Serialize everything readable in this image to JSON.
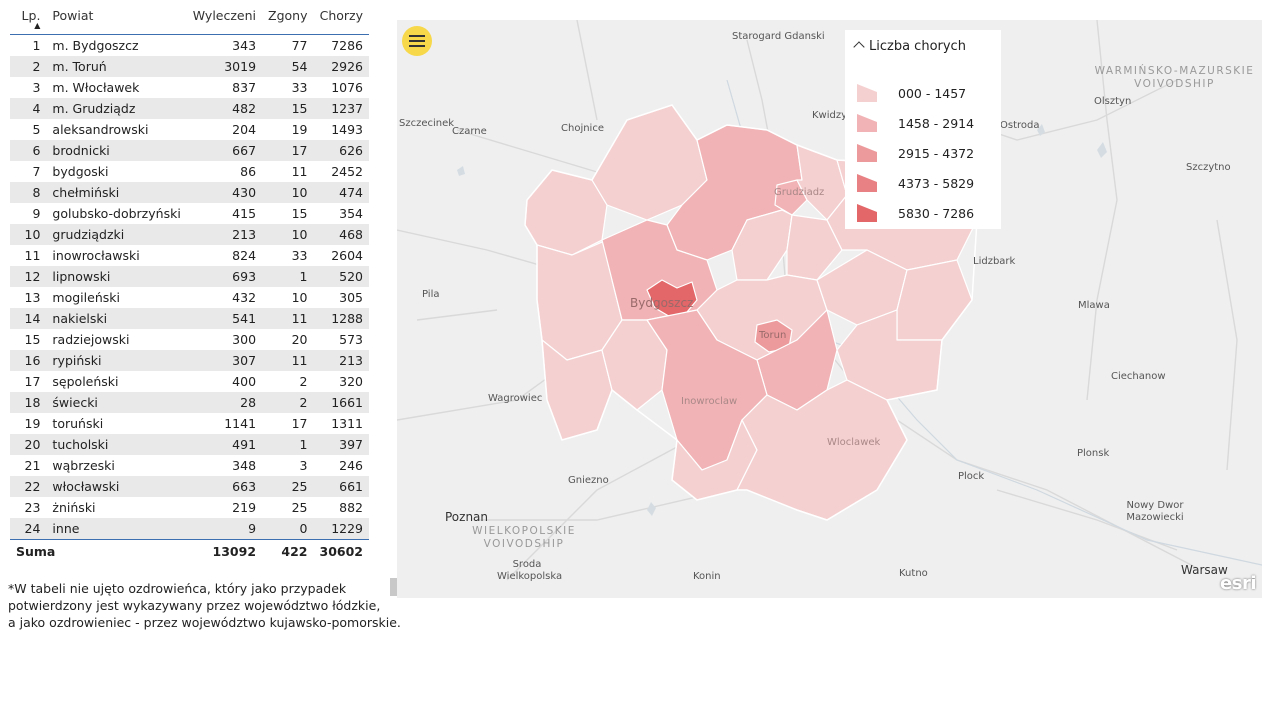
{
  "table": {
    "headers": {
      "lp": "Lp.",
      "name": "Powiat",
      "recovered": "Wyleczeni",
      "deaths": "Zgony",
      "sick": "Chorzy"
    },
    "rows": [
      {
        "lp": "1",
        "name": "m. Bydgoszcz",
        "recovered": "343",
        "deaths": "77",
        "sick": "7286"
      },
      {
        "lp": "2",
        "name": "m. Toruń",
        "recovered": "3019",
        "deaths": "54",
        "sick": "2926"
      },
      {
        "lp": "3",
        "name": "m. Włocławek",
        "recovered": "837",
        "deaths": "33",
        "sick": "1076"
      },
      {
        "lp": "4",
        "name": "m. Grudziądz",
        "recovered": "482",
        "deaths": "15",
        "sick": "1237"
      },
      {
        "lp": "5",
        "name": "aleksandrowski",
        "recovered": "204",
        "deaths": "19",
        "sick": "1493"
      },
      {
        "lp": "6",
        "name": "brodnicki",
        "recovered": "667",
        "deaths": "17",
        "sick": "626"
      },
      {
        "lp": "7",
        "name": "bydgoski",
        "recovered": "86",
        "deaths": "11",
        "sick": "2452"
      },
      {
        "lp": "8",
        "name": "chełmiński",
        "recovered": "430",
        "deaths": "10",
        "sick": "474"
      },
      {
        "lp": "9",
        "name": "golubsko-dobrzyński",
        "recovered": "415",
        "deaths": "15",
        "sick": "354"
      },
      {
        "lp": "10",
        "name": "grudziądzki",
        "recovered": "213",
        "deaths": "10",
        "sick": "468"
      },
      {
        "lp": "11",
        "name": "inowrocławski",
        "recovered": "824",
        "deaths": "33",
        "sick": "2604"
      },
      {
        "lp": "12",
        "name": "lipnowski",
        "recovered": "693",
        "deaths": "1",
        "sick": "520"
      },
      {
        "lp": "13",
        "name": "mogileński",
        "recovered": "432",
        "deaths": "10",
        "sick": "305"
      },
      {
        "lp": "14",
        "name": "nakielski",
        "recovered": "541",
        "deaths": "11",
        "sick": "1288"
      },
      {
        "lp": "15",
        "name": "radziejowski",
        "recovered": "300",
        "deaths": "20",
        "sick": "573"
      },
      {
        "lp": "16",
        "name": "rypiński",
        "recovered": "307",
        "deaths": "11",
        "sick": "213"
      },
      {
        "lp": "17",
        "name": "sępoleński",
        "recovered": "400",
        "deaths": "2",
        "sick": "320"
      },
      {
        "lp": "18",
        "name": "świecki",
        "recovered": "28",
        "deaths": "2",
        "sick": "1661"
      },
      {
        "lp": "19",
        "name": "toruński",
        "recovered": "1141",
        "deaths": "17",
        "sick": "1311"
      },
      {
        "lp": "20",
        "name": "tucholski",
        "recovered": "491",
        "deaths": "1",
        "sick": "397"
      },
      {
        "lp": "21",
        "name": "wąbrzeski",
        "recovered": "348",
        "deaths": "3",
        "sick": "246"
      },
      {
        "lp": "22",
        "name": "włocławski",
        "recovered": "663",
        "deaths": "25",
        "sick": "661"
      },
      {
        "lp": "23",
        "name": "żniński",
        "recovered": "219",
        "deaths": "25",
        "sick": "882"
      },
      {
        "lp": "24",
        "name": "inne",
        "recovered": "9",
        "deaths": "0",
        "sick": "1229"
      }
    ],
    "total": {
      "label": "Suma",
      "recovered": "13092",
      "deaths": "422",
      "sick": "30602"
    }
  },
  "footnote": [
    "*W tabeli nie ujęto ozdrowieńca, który jako przypadek",
    "potwierdzony jest wykazywany przez województwo łódzkie,",
    "a jako ozdrowieniec - przez województwo kujawsko-pomorskie."
  ],
  "map": {
    "icons": {
      "menu": "hamburger-menu-icon",
      "legend_toggle": "chevron-up-icon"
    },
    "legend": {
      "title": "Liczba chorych",
      "classes": [
        {
          "label": "000 - 1457",
          "color": "#f5d0d1"
        },
        {
          "label": "1458 - 2914",
          "color": "#f1b3b5"
        },
        {
          "label": "2915 - 4372",
          "color": "#ec9a9c"
        },
        {
          "label": "4373 - 5829",
          "color": "#e88183"
        },
        {
          "label": "5830 - 7286",
          "color": "#e36668"
        }
      ]
    },
    "cities": {
      "starogard": "Starogard Gdanski",
      "kwidzyn": "Kwidzy",
      "olsztyn": "Olsztyn",
      "ostroda": "Ostroda",
      "szczytno": "Szczytno",
      "szczecinek": "Szczecinek",
      "czarne": "Czarne",
      "chojnice": "Chojnice",
      "grudziadz": "Grudziadz",
      "lidzbark": "Lidzbark",
      "pila": "Pila",
      "bydgoszcz": "Bydgoszcz",
      "torun": "Torun",
      "mlawa": "Mlawa",
      "ciechanow": "Ciechanow",
      "wagrowiec": "Wagrowiec",
      "inowroclaw": "Inowroclaw",
      "wloclawek": "Wloclawek",
      "gniezno": "Gniezno",
      "plock": "Plock",
      "plonsk": "Plonsk",
      "poznan": "Poznan",
      "nowy_dwor": "Nowy Dwor Mazowiecki",
      "sroda": "Sroda Wielkopolska",
      "konin": "Konin",
      "kutno": "Kutno",
      "warsaw": "Warsaw"
    },
    "regions": {
      "warminsko": "WARMIŃSKO-MAZURSKIE VOIVODSHIP",
      "wielkopolskie": "WIELKOPOLSKIE VOIVODSHIP"
    },
    "attribution": "esri"
  }
}
